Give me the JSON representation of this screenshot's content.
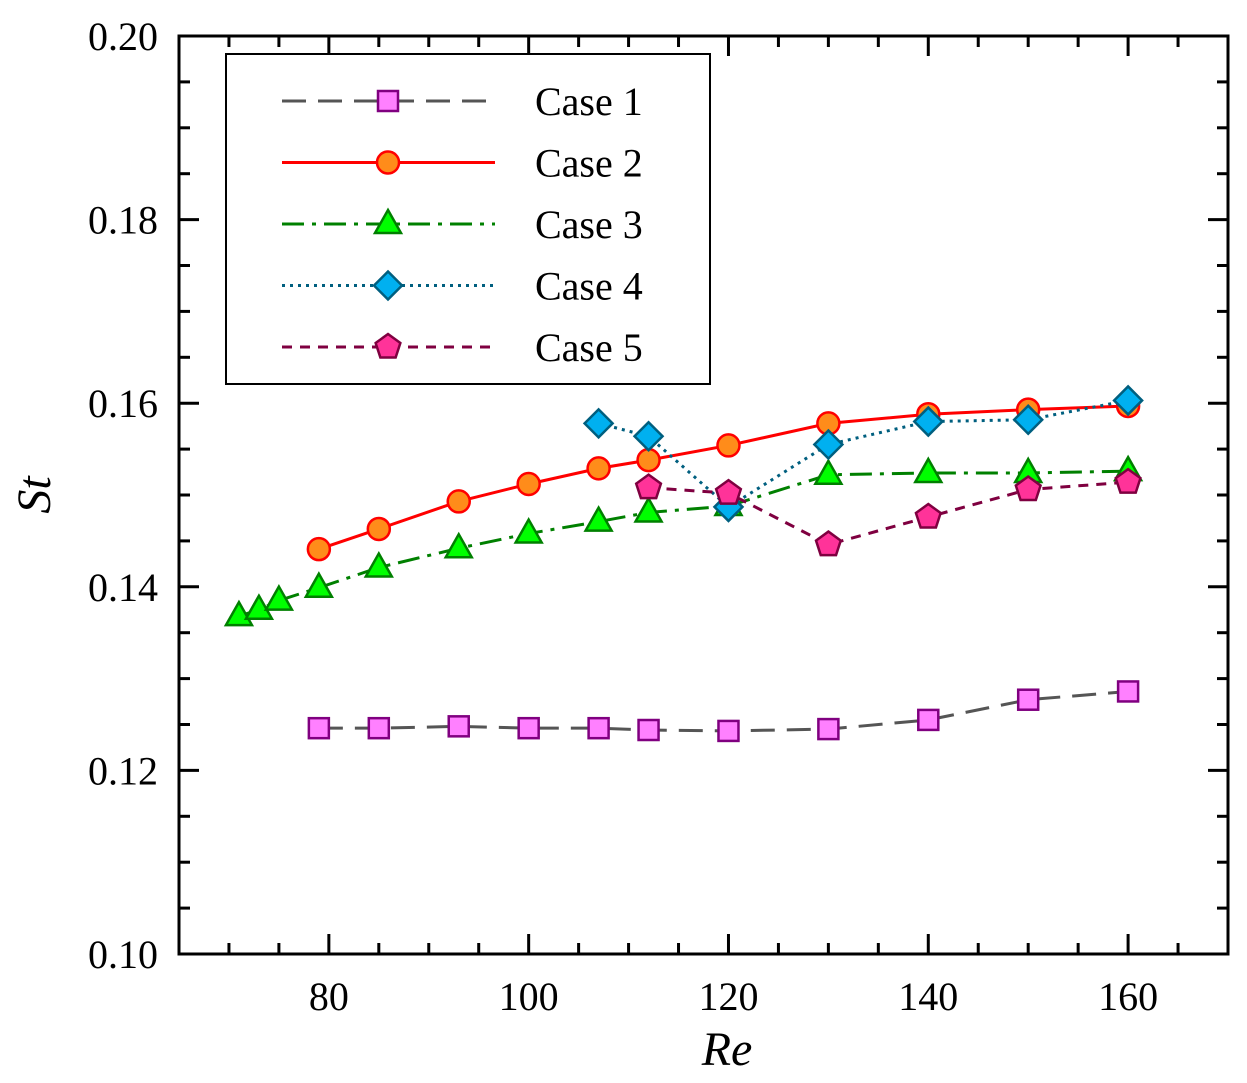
{
  "chart_data": {
    "type": "line",
    "title": "",
    "xlabel": "Re",
    "ylabel": "St",
    "xlim": [
      65,
      170
    ],
    "ylim": [
      0.1,
      0.2
    ],
    "legend_position": "top-left",
    "grid": false,
    "x_tick_labels": [
      "80",
      "100",
      "120",
      "140",
      "160"
    ],
    "y_tick_labels": [
      "0.10",
      "0.12",
      "0.14",
      "0.16",
      "0.18",
      "0.20"
    ],
    "x_ticks": [
      80,
      100,
      120,
      140,
      160
    ],
    "y_ticks": [
      0.1,
      0.12,
      0.14,
      0.16,
      0.18,
      0.2
    ],
    "series": [
      {
        "name": "Case 1",
        "color": "#555555",
        "marker": "square",
        "marker_fill": "#ff80ff",
        "marker_stroke": "#800080",
        "line_style": "dashed",
        "x": [
          79,
          85,
          93,
          100,
          107,
          112,
          120,
          130,
          140,
          150,
          160
        ],
        "y": [
          0.1246,
          0.1246,
          0.1248,
          0.1246,
          0.1246,
          0.1244,
          0.1243,
          0.1245,
          0.1255,
          0.1277,
          0.1286
        ]
      },
      {
        "name": "Case 2",
        "color": "#ff0000",
        "marker": "circle",
        "marker_fill": "#ff8c1a",
        "marker_stroke": "#ff0000",
        "line_style": "solid",
        "x": [
          79,
          85,
          93,
          100,
          107,
          112,
          120,
          130,
          140,
          150,
          160
        ],
        "y": [
          0.1441,
          0.1463,
          0.1493,
          0.1512,
          0.1529,
          0.1538,
          0.1554,
          0.1578,
          0.1588,
          0.1593,
          0.1597
        ]
      },
      {
        "name": "Case 3",
        "color": "#008000",
        "marker": "triangle",
        "marker_fill": "#00ff00",
        "marker_stroke": "#008000",
        "line_style": "dashdot",
        "x": [
          71,
          73,
          75,
          79,
          85,
          93,
          100,
          107,
          112,
          120,
          130,
          140,
          150,
          160
        ],
        "y": [
          0.1368,
          0.1375,
          0.1385,
          0.1399,
          0.1421,
          0.1442,
          0.1458,
          0.1471,
          0.1481,
          0.1488,
          0.1522,
          0.1524,
          0.1524,
          0.1526
        ]
      },
      {
        "name": "Case 4",
        "color": "#005f7f",
        "marker": "diamond",
        "marker_fill": "#00b0f0",
        "marker_stroke": "#005f7f",
        "line_style": "dotted",
        "x": [
          107,
          112,
          120,
          130,
          140,
          150,
          160
        ],
        "y": [
          0.1578,
          0.1564,
          0.1487,
          0.1555,
          0.158,
          0.1582,
          0.1603
        ]
      },
      {
        "name": "Case 5",
        "color": "#7f0040",
        "marker": "pentagon",
        "marker_fill": "#ff3399",
        "marker_stroke": "#7f0040",
        "line_style": "shortdash",
        "x": [
          112,
          120,
          130,
          140,
          150,
          160
        ],
        "y": [
          0.1508,
          0.1502,
          0.1446,
          0.1476,
          0.1506,
          0.1514
        ]
      }
    ]
  }
}
